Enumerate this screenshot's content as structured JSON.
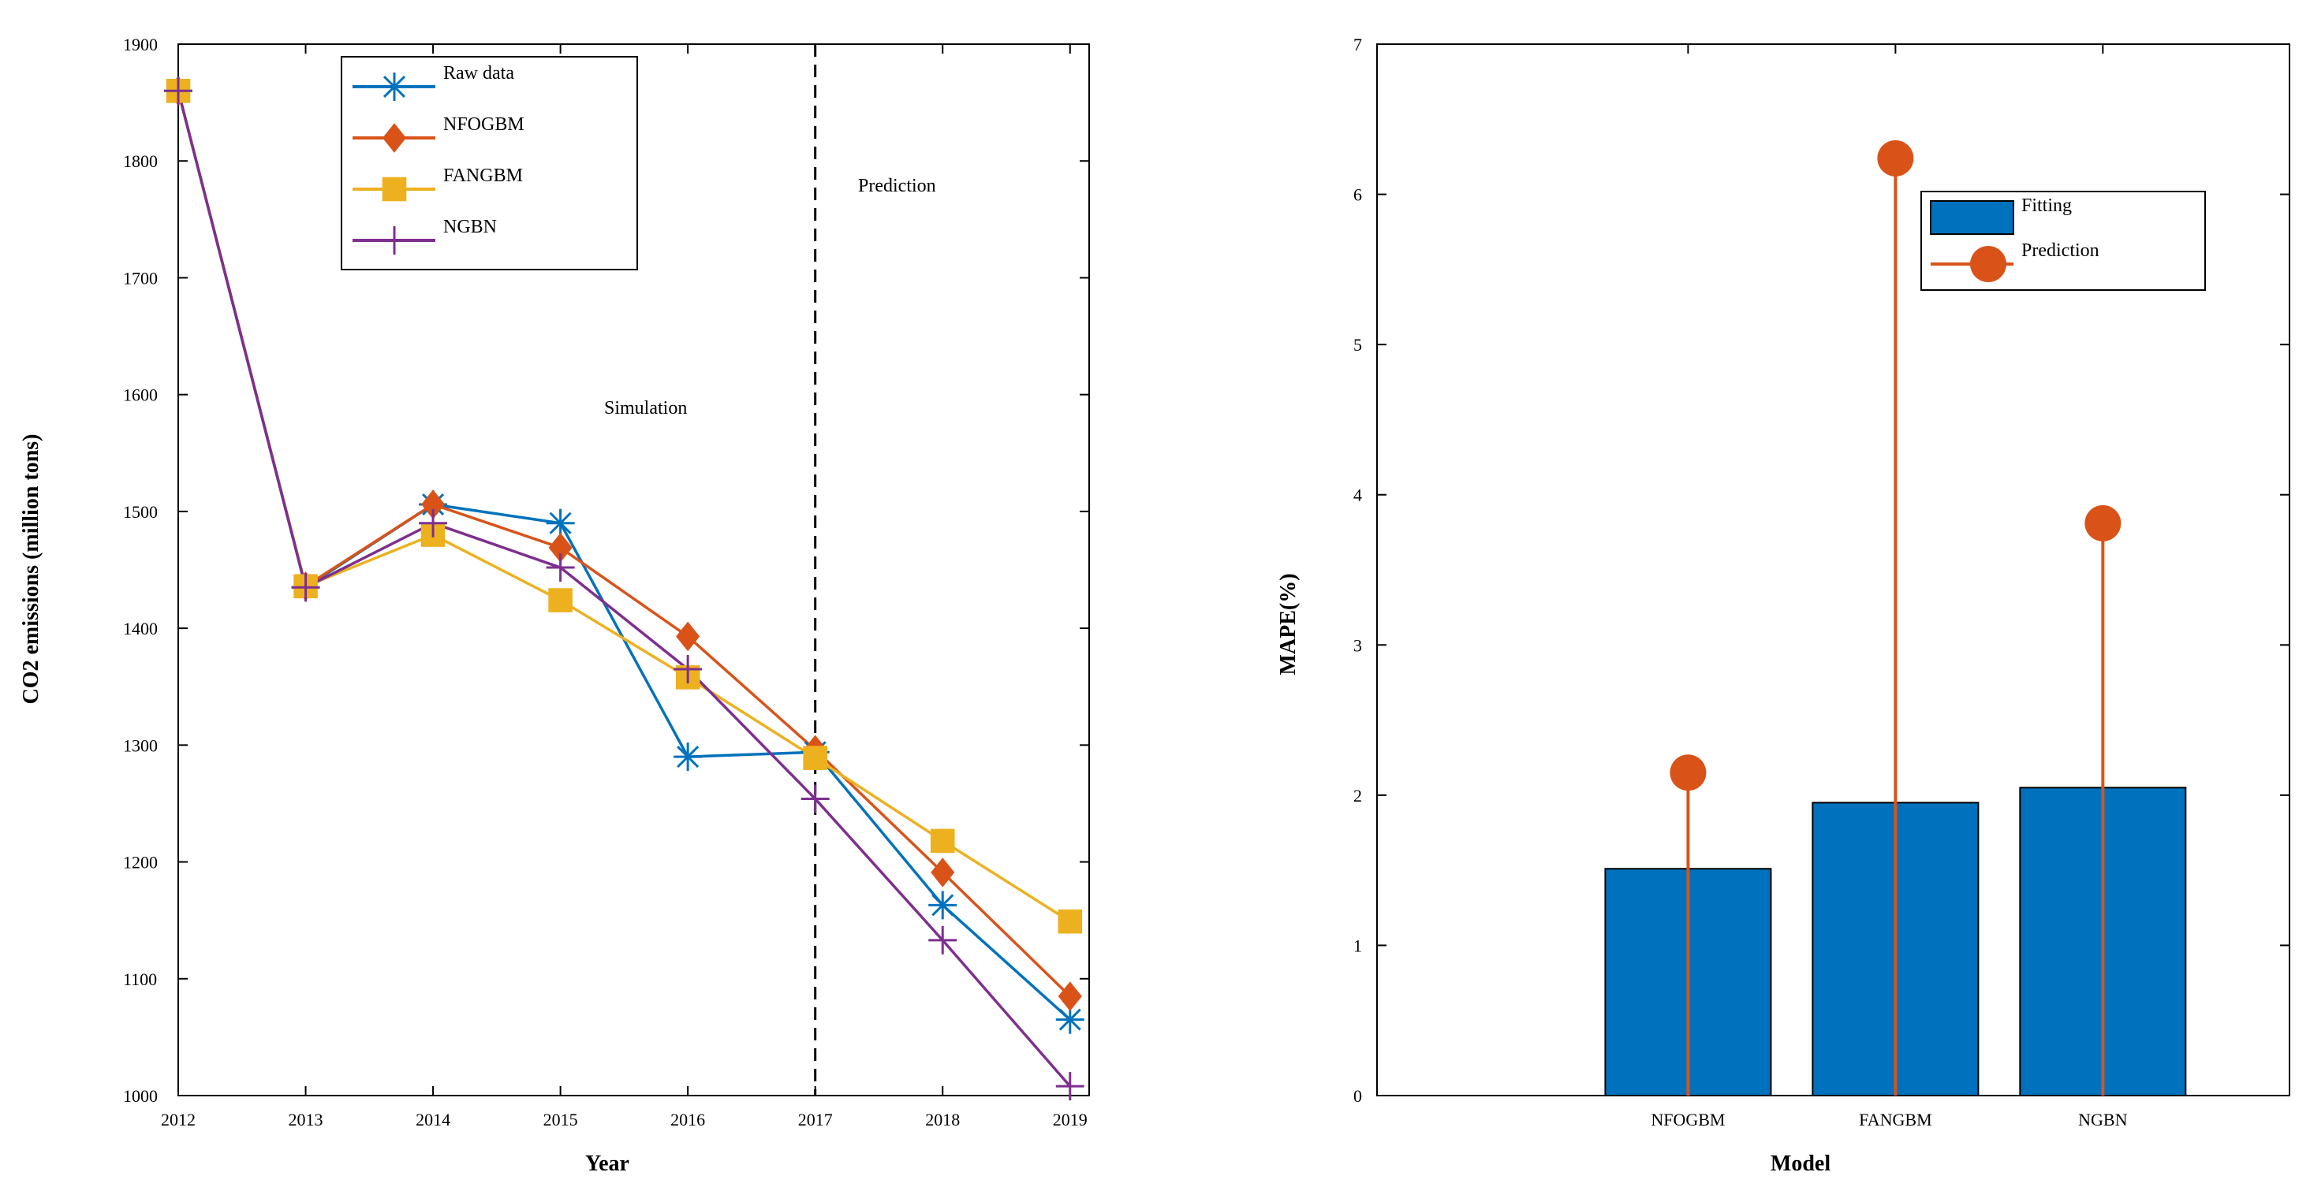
{
  "chart_data": [
    {
      "type": "line",
      "xlabel": "Year",
      "ylabel": "CO2 emissions (million tons)",
      "x": [
        2012,
        2013,
        2014,
        2015,
        2016,
        2017,
        2018,
        2019
      ],
      "xlim": [
        2012,
        2019.15
      ],
      "ylim": [
        1000,
        1900
      ],
      "yticks": [
        1000,
        1100,
        1200,
        1300,
        1400,
        1500,
        1600,
        1700,
        1800,
        1900
      ],
      "series": [
        {
          "name": "Raw data",
          "color": "#0072bd",
          "marker": "asterisk",
          "values": [
            1860,
            1435,
            1506,
            1490,
            1290,
            1294,
            1163,
            1065
          ]
        },
        {
          "name": "NFOGBM",
          "color": "#d95319",
          "marker": "diamond",
          "values": [
            1860,
            1436,
            1506,
            1469,
            1393,
            1296,
            1191,
            1085
          ]
        },
        {
          "name": "FANGBM",
          "color": "#edb120",
          "marker": "square",
          "values": [
            1860,
            1436,
            1480,
            1424,
            1358,
            1289,
            1218,
            1149
          ]
        },
        {
          "name": "NGBN",
          "color": "#7e2f8e",
          "marker": "plus",
          "values": [
            1860,
            1435,
            1490,
            1452,
            1365,
            1254,
            1133,
            1008
          ]
        }
      ],
      "divider_x": 2017,
      "annotations": [
        "Simulation",
        "Prediction"
      ],
      "legend_position": "top-left"
    },
    {
      "type": "bar",
      "xlabel": "Model",
      "ylabel": "MAPE(%)",
      "categories": [
        "NFOGBM",
        "FANGBM",
        "NGBN"
      ],
      "ylim": [
        0,
        7
      ],
      "yticks": [
        0,
        1,
        2,
        3,
        4,
        5,
        6,
        7
      ],
      "series": [
        {
          "name": "Fitting",
          "type": "bar",
          "color": "#0072bd",
          "values": [
            1.51,
            1.95,
            2.05
          ]
        },
        {
          "name": "Prediction",
          "type": "stem",
          "color": "#d95319",
          "values": [
            2.15,
            6.24,
            3.81
          ]
        }
      ],
      "legend_position": "top-right"
    }
  ],
  "annotations": {
    "simulation": "Simulation",
    "prediction": "Prediction"
  }
}
